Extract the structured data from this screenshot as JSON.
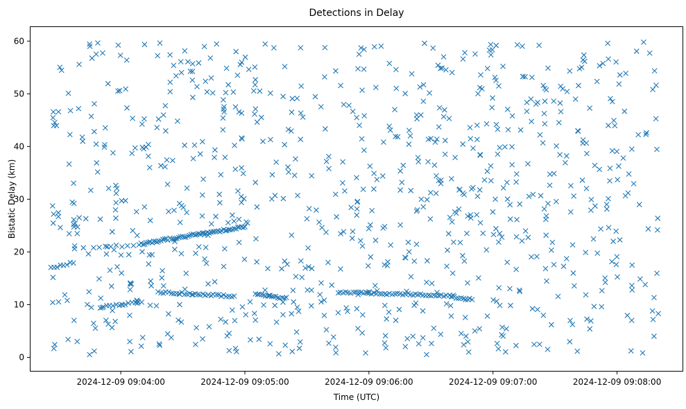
{
  "chart_data": {
    "type": "scatter",
    "title": "Detections in Delay",
    "xlabel": "Time (UTC)",
    "ylabel": "Bistatic Delay (km)",
    "marker": "x",
    "color": "#1f77b4",
    "grid": false,
    "x_ticks": [
      "2024-12-09 09:04:00",
      "2024-12-09 09:05:00",
      "2024-12-09 09:06:00",
      "2024-12-09 09:07:00",
      "2024-12-09 09:08:00"
    ],
    "y_ticks": [
      0,
      10,
      20,
      30,
      40,
      50,
      60
    ],
    "xlim": [
      "2024-12-09 09:03:16",
      "2024-12-09 09:08:32"
    ],
    "ylim": [
      -2.7,
      62.8
    ],
    "tracks": [
      {
        "start": "2024-12-09 09:03:26",
        "end": "2024-12-09 09:03:37",
        "y_start": 17.0,
        "y_end": 18.0,
        "count": 8
      },
      {
        "start": "2024-12-09 09:03:47",
        "end": "2024-12-09 09:04:06",
        "y_start": 20.8,
        "y_end": 21.3,
        "count": 8
      },
      {
        "start": "2024-12-09 09:04:09",
        "end": "2024-12-09 09:05:00",
        "y_start": 21.5,
        "y_end": 24.8,
        "count": 60
      },
      {
        "start": "2024-12-09 09:03:50",
        "end": "2024-12-09 09:04:10",
        "y_start": 9.5,
        "y_end": 10.5,
        "count": 14
      },
      {
        "start": "2024-12-09 09:04:18",
        "end": "2024-12-09 09:04:55",
        "y_start": 12.4,
        "y_end": 11.6,
        "count": 30
      },
      {
        "start": "2024-12-09 09:05:05",
        "end": "2024-12-09 09:05:20",
        "y_start": 12.0,
        "y_end": 11.2,
        "count": 16
      },
      {
        "start": "2024-12-09 09:05:45",
        "end": "2024-12-09 09:06:40",
        "y_start": 12.4,
        "y_end": 11.7,
        "count": 45
      },
      {
        "start": "2024-12-09 09:06:40",
        "end": "2024-12-09 09:06:50",
        "y_start": 11.4,
        "y_end": 11.0,
        "count": 10
      }
    ],
    "clutter": {
      "count": 860,
      "x_range": [
        "2024-12-09 09:03:27",
        "2024-12-09 09:08:20"
      ],
      "y_range": [
        0.5,
        59.8
      ]
    }
  }
}
